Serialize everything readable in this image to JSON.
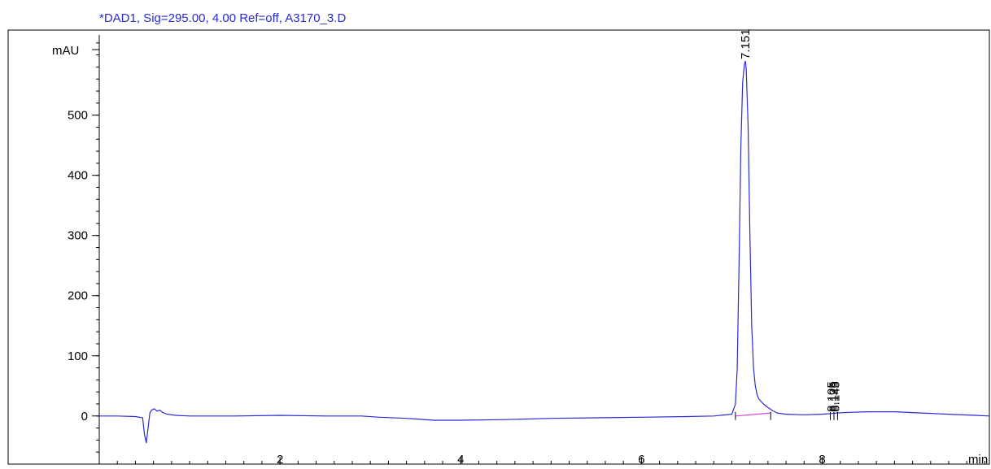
{
  "chart_data": {
    "type": "line",
    "title": "*DAD1, Sig=295.00, 4.00 Ref=off, A3170_3.D",
    "xlabel": "min",
    "ylabel": "mAU",
    "xlim": [
      0,
      9.85
    ],
    "ylim": [
      -80,
      640
    ],
    "x_ticks": [
      2,
      4,
      6,
      8
    ],
    "y_ticks": [
      0,
      100,
      200,
      300,
      400,
      500
    ],
    "y_minor_step": 20,
    "x_minor_step": 0.2,
    "grid": false,
    "series": [
      {
        "color": "#2a2ad8",
        "x": [
          0.0,
          0.2,
          0.4,
          0.48,
          0.5,
          0.52,
          0.54,
          0.56,
          0.58,
          0.61,
          0.64,
          0.67,
          0.7,
          0.75,
          0.85,
          1.0,
          1.5,
          2.0,
          2.5,
          2.9,
          3.1,
          3.4,
          3.7,
          4.0,
          4.5,
          5.0,
          5.5,
          6.0,
          6.5,
          6.8,
          7.0,
          7.04,
          7.06,
          7.08,
          7.1,
          7.12,
          7.14,
          7.151,
          7.16,
          7.18,
          7.2,
          7.22,
          7.24,
          7.26,
          7.28,
          7.3,
          7.35,
          7.4,
          7.45,
          7.5,
          7.6,
          7.8,
          8.0,
          8.1,
          8.16,
          8.3,
          8.5,
          8.8,
          9.1,
          9.4,
          9.7,
          9.85
        ],
        "y": [
          0,
          0,
          -1,
          -3,
          -30,
          -45,
          -20,
          5,
          10,
          12,
          8,
          10,
          6,
          3,
          1,
          0,
          0,
          1,
          0,
          0,
          -2,
          -4,
          -7,
          -7,
          -6,
          -4,
          -3,
          -2,
          -1,
          0,
          3,
          20,
          80,
          250,
          450,
          555,
          585,
          590,
          575,
          480,
          300,
          150,
          80,
          50,
          35,
          28,
          20,
          14,
          9,
          5,
          3,
          2,
          3,
          4,
          5,
          6,
          7,
          7,
          5,
          3,
          1,
          0
        ]
      },
      {
        "color": "#e040e0",
        "x": [
          7.04,
          7.43
        ],
        "y": [
          0,
          5
        ]
      }
    ],
    "peak_labels": [
      {
        "x": 7.151,
        "y": 590,
        "label": "7.151"
      },
      {
        "x": 8.105,
        "y": 4,
        "label": "8.105"
      },
      {
        "x": 8.125,
        "y": 4,
        "label": "8.125"
      },
      {
        "x": 8.145,
        "y": 4,
        "label": "8.145"
      }
    ],
    "integration_marks": [
      7.04,
      7.43,
      8.09,
      8.13,
      8.17
    ]
  }
}
